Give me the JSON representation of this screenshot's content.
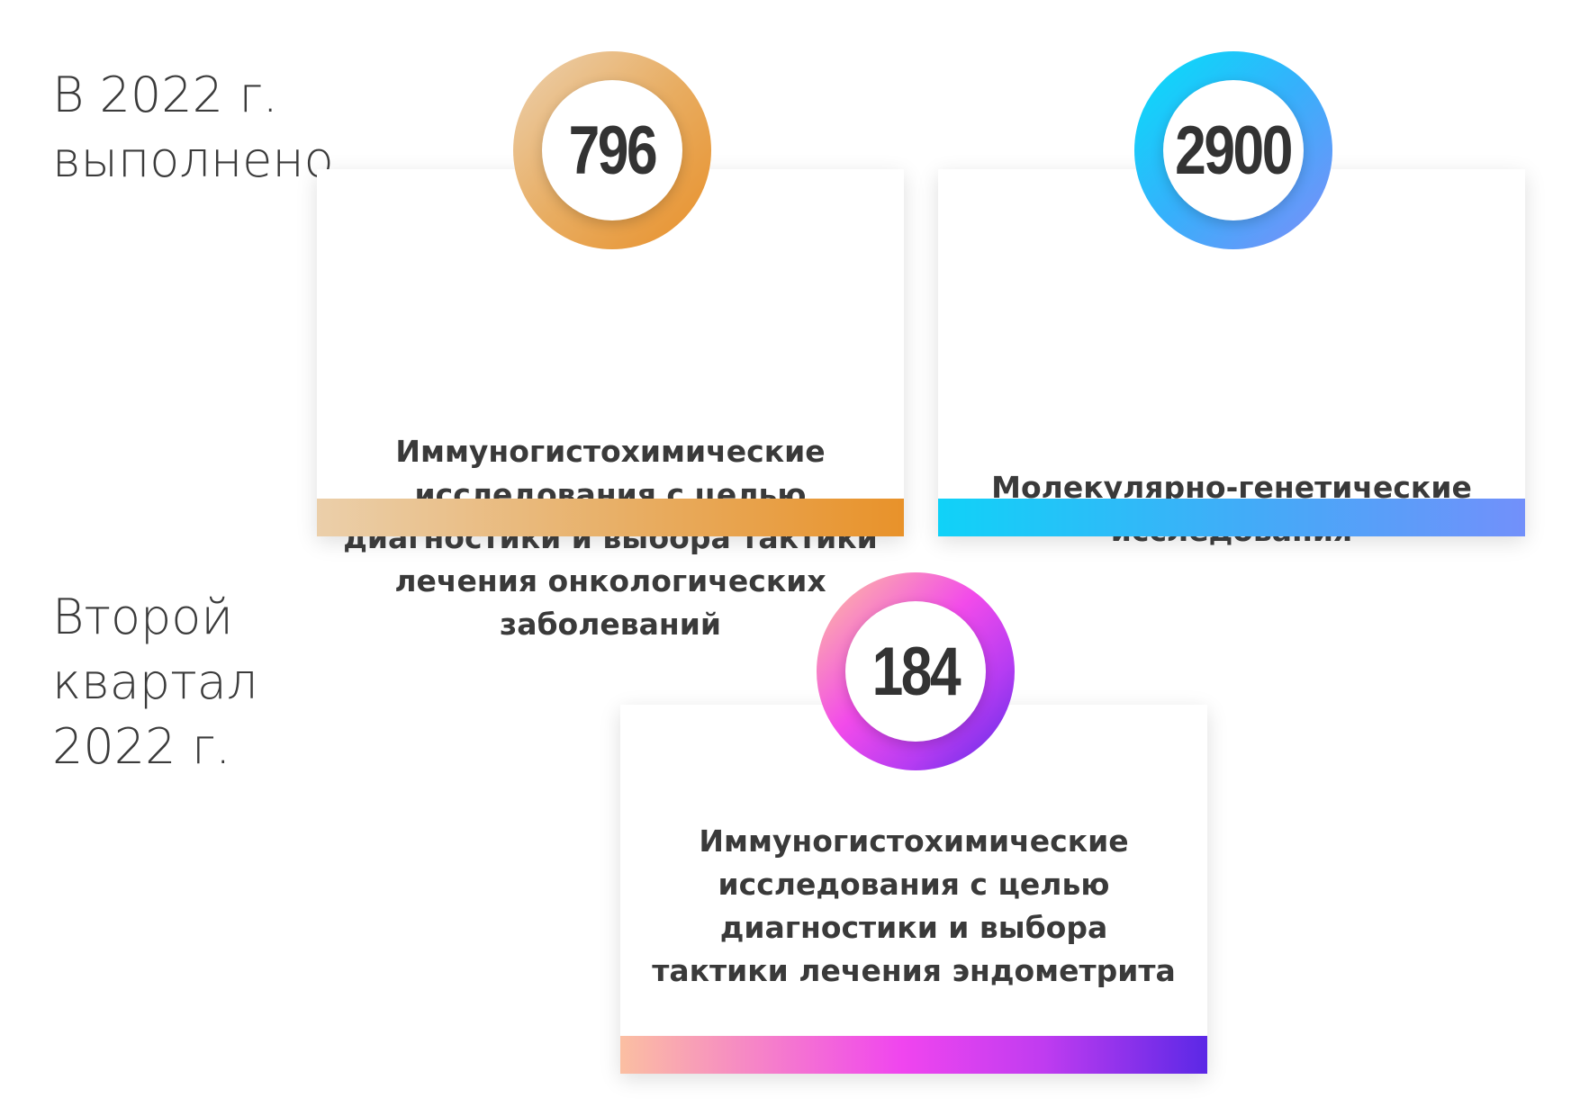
{
  "sections": [
    {
      "label_lines": [
        "В 2022 г.",
        "выполнено"
      ],
      "items": [
        {
          "value": "796",
          "description_lines": [
            "Иммуногистохимические",
            "исследования с целью",
            "диагностики и выбора тактики",
            "лечения онкологических",
            "заболеваний"
          ],
          "accent_color": "#e8922a"
        },
        {
          "value": "2900",
          "description_lines": [
            "Молекулярно-генетические",
            "исследования"
          ],
          "accent_color": "#36b0fb"
        }
      ]
    },
    {
      "label_lines": [
        "Второй",
        "квартал",
        "2022 г."
      ],
      "items": [
        {
          "value": "184",
          "description_lines": [
            "Иммуногистохимические",
            "исследования с целью",
            "диагностики и выбора",
            "тактики лечения эндометрита"
          ],
          "accent_color": "#c03cf0"
        }
      ]
    }
  ]
}
